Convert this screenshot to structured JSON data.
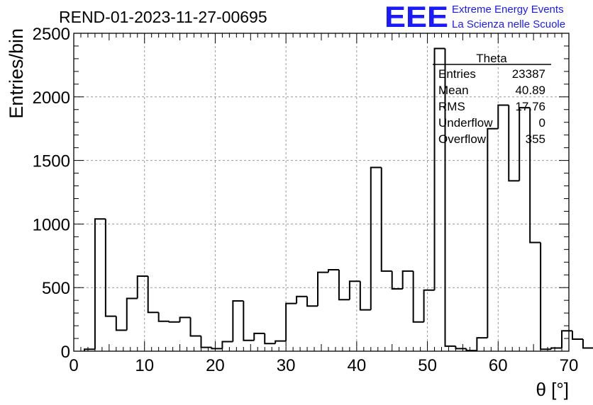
{
  "header": {
    "run_title": "REND-01-2023-11-27-00695",
    "logo_text": "EEE",
    "logo_line1": "Extreme Energy Events",
    "logo_line2": "La Scienza nelle Scuole"
  },
  "stats_box": {
    "name": "Theta",
    "rows": [
      {
        "label": "Entries",
        "value": "23387"
      },
      {
        "label": "Mean",
        "value": "40.89"
      },
      {
        "label": "RMS",
        "value": "17.76"
      },
      {
        "label": "Underflow",
        "value": "0"
      },
      {
        "label": "Overflow",
        "value": "355"
      }
    ]
  },
  "colors": {
    "line": "#000000",
    "logo": "#1a1aff",
    "grid": "#9a9a9a"
  },
  "chart_data": {
    "type": "histogram",
    "title": "REND-01-2023-11-27-00695",
    "xlabel": "θ [°]",
    "ylabel": "Entries/bin",
    "xlim": [
      0,
      70
    ],
    "ylim": [
      0,
      2500
    ],
    "grid": true,
    "bin_width": 1.5,
    "bin_start": 1.5,
    "x_ticks": [
      "0",
      "10",
      "20",
      "30",
      "40",
      "50",
      "60",
      "70"
    ],
    "y_ticks": [
      "0",
      "500",
      "1000",
      "1500",
      "2000",
      "2500"
    ],
    "values": [
      15,
      1040,
      275,
      165,
      415,
      590,
      305,
      235,
      230,
      265,
      120,
      30,
      20,
      75,
      395,
      85,
      140,
      60,
      80,
      375,
      430,
      355,
      620,
      640,
      405,
      550,
      325,
      1445,
      630,
      490,
      630,
      230,
      480,
      2380,
      40,
      20,
      5,
      105,
      1750,
      1935,
      1340,
      1915,
      855,
      15,
      25,
      160,
      95,
      25
    ]
  }
}
